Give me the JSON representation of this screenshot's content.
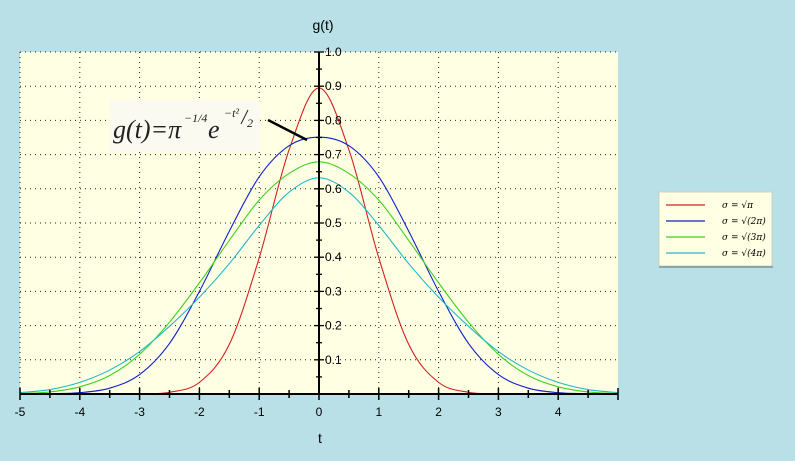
{
  "chart_data": {
    "type": "line",
    "title": "",
    "xlabel": "t",
    "ylabel": "g(t)",
    "xlim": [
      -5,
      5
    ],
    "ylim": [
      0,
      1.0
    ],
    "x_ticks": [
      -5,
      -4,
      -3,
      -2,
      -1,
      0,
      1,
      2,
      3,
      4
    ],
    "y_ticks": [
      0.1,
      0.2,
      0.3,
      0.4,
      0.5,
      0.6,
      0.7,
      0.8,
      0.9,
      1.0
    ],
    "grid": true,
    "legend_position": "right",
    "annotation": {
      "lhs": "g(t)=π",
      "exponent": "−1/4",
      "base": "e",
      "power_num": "−t²",
      "power_den": "2"
    },
    "x": [
      -5,
      -4.5,
      -4,
      -3.5,
      -3,
      -2.5,
      -2,
      -1.5,
      -1,
      -0.5,
      0,
      0.5,
      1,
      1.5,
      2,
      2.5,
      3,
      3.5,
      4,
      4.5,
      5
    ],
    "series": [
      {
        "name": "σ = √π",
        "color": "#d42020",
        "values": [
          0.0,
          0.0,
          0.0,
          0.0,
          0.0,
          0.005,
          0.034,
          0.145,
          0.398,
          0.714,
          0.895,
          0.714,
          0.398,
          0.145,
          0.034,
          0.005,
          0.0,
          0.0,
          0.0,
          0.0,
          0.0
        ]
      },
      {
        "name": "σ = √(2π)",
        "color": "#1020c8",
        "values": [
          0.0,
          0.001,
          0.004,
          0.017,
          0.057,
          0.148,
          0.3,
          0.476,
          0.635,
          0.726,
          0.751,
          0.726,
          0.635,
          0.476,
          0.3,
          0.148,
          0.057,
          0.017,
          0.004,
          0.001,
          0.0
        ]
      },
      {
        "name": "σ = √(3π)",
        "color": "#40d020",
        "values": [
          0.001,
          0.006,
          0.021,
          0.054,
          0.116,
          0.21,
          0.325,
          0.449,
          0.567,
          0.645,
          0.679,
          0.645,
          0.567,
          0.449,
          0.325,
          0.21,
          0.116,
          0.054,
          0.021,
          0.006,
          0.001
        ]
      },
      {
        "name": "σ = √(4π)",
        "color": "#20b8c8",
        "values": [
          0.004,
          0.013,
          0.034,
          0.07,
          0.124,
          0.198,
          0.283,
          0.381,
          0.493,
          0.59,
          0.632,
          0.59,
          0.493,
          0.381,
          0.283,
          0.198,
          0.124,
          0.07,
          0.034,
          0.013,
          0.004
        ]
      }
    ]
  }
}
